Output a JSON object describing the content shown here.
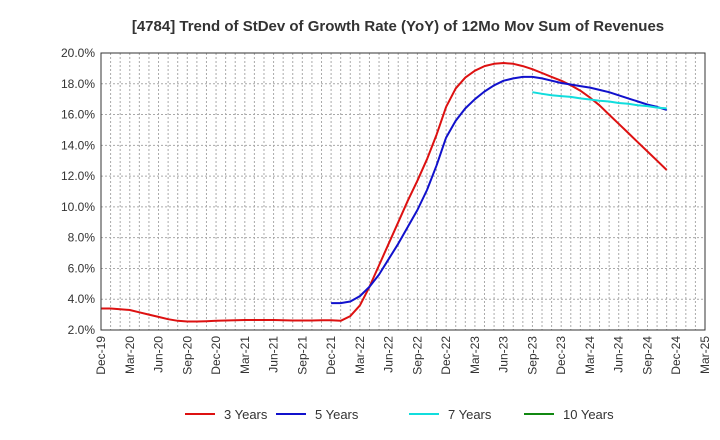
{
  "chart_data": {
    "type": "line",
    "title": "[4784]  Trend of StDev of Growth Rate (YoY) of 12Mo Mov Sum of Revenues",
    "xlabel": "",
    "ylabel": "",
    "x_tick_labels": [
      "Dec-19",
      "Mar-20",
      "Jun-20",
      "Sep-20",
      "Dec-20",
      "Mar-21",
      "Jun-21",
      "Sep-21",
      "Dec-21",
      "Mar-22",
      "Jun-22",
      "Sep-22",
      "Dec-22",
      "Mar-23",
      "Jun-23",
      "Sep-23",
      "Dec-23",
      "Mar-24",
      "Jun-24",
      "Sep-24",
      "Dec-24",
      "Mar-25"
    ],
    "y_tick_labels": [
      "2.0%",
      "4.0%",
      "6.0%",
      "8.0%",
      "10.0%",
      "12.0%",
      "14.0%",
      "16.0%",
      "18.0%",
      "20.0%"
    ],
    "ylim": [
      2.0,
      20.0
    ],
    "grid": true,
    "legend_position": "bottom",
    "series": [
      {
        "name": "3 Years",
        "color": "#dd1111",
        "points": [
          [
            "Dec-19",
            3.4
          ],
          [
            "Jan-20",
            3.4
          ],
          [
            "Feb-20",
            3.35
          ],
          [
            "Mar-20",
            3.3
          ],
          [
            "Apr-20",
            3.15
          ],
          [
            "May-20",
            3.0
          ],
          [
            "Jun-20",
            2.85
          ],
          [
            "Jul-20",
            2.7
          ],
          [
            "Aug-20",
            2.6
          ],
          [
            "Sep-20",
            2.55
          ],
          [
            "Oct-20",
            2.55
          ],
          [
            "Nov-20",
            2.57
          ],
          [
            "Dec-20",
            2.6
          ],
          [
            "Jan-21",
            2.62
          ],
          [
            "Feb-21",
            2.64
          ],
          [
            "Mar-21",
            2.65
          ],
          [
            "Apr-21",
            2.65
          ],
          [
            "May-21",
            2.65
          ],
          [
            "Jun-21",
            2.65
          ],
          [
            "Jul-21",
            2.63
          ],
          [
            "Aug-21",
            2.62
          ],
          [
            "Sep-21",
            2.62
          ],
          [
            "Oct-21",
            2.62
          ],
          [
            "Nov-21",
            2.63
          ],
          [
            "Dec-21",
            2.63
          ],
          [
            "Jan-22",
            2.6
          ],
          [
            "Feb-22",
            2.9
          ],
          [
            "Mar-22",
            3.6
          ],
          [
            "Apr-22",
            4.8
          ],
          [
            "May-22",
            6.2
          ],
          [
            "Jun-22",
            7.6
          ],
          [
            "Jul-22",
            9.0
          ],
          [
            "Aug-22",
            10.4
          ],
          [
            "Sep-22",
            11.7
          ],
          [
            "Oct-22",
            13.1
          ],
          [
            "Nov-22",
            14.7
          ],
          [
            "Dec-22",
            16.5
          ],
          [
            "Jan-23",
            17.7
          ],
          [
            "Feb-23",
            18.4
          ],
          [
            "Mar-23",
            18.85
          ],
          [
            "Apr-23",
            19.15
          ],
          [
            "May-23",
            19.3
          ],
          [
            "Jun-23",
            19.35
          ],
          [
            "Jul-23",
            19.3
          ],
          [
            "Aug-23",
            19.15
          ],
          [
            "Sep-23",
            18.95
          ],
          [
            "Oct-23",
            18.7
          ],
          [
            "Nov-23",
            18.45
          ],
          [
            "Dec-23",
            18.2
          ],
          [
            "Jan-24",
            17.9
          ],
          [
            "Feb-24",
            17.55
          ],
          [
            "Mar-24",
            17.1
          ],
          [
            "Apr-24",
            16.6
          ],
          [
            "May-24",
            16.0
          ],
          [
            "Jun-24",
            15.4
          ],
          [
            "Jul-24",
            14.8
          ],
          [
            "Aug-24",
            14.2
          ],
          [
            "Sep-24",
            13.6
          ],
          [
            "Oct-24",
            13.0
          ],
          [
            "Nov-24",
            12.4
          ]
        ]
      },
      {
        "name": "5 Years",
        "color": "#1111cc",
        "points": [
          [
            "Dec-21",
            3.75
          ],
          [
            "Jan-22",
            3.75
          ],
          [
            "Feb-22",
            3.85
          ],
          [
            "Mar-22",
            4.2
          ],
          [
            "Apr-22",
            4.8
          ],
          [
            "May-22",
            5.6
          ],
          [
            "Jun-22",
            6.6
          ],
          [
            "Jul-22",
            7.6
          ],
          [
            "Aug-22",
            8.7
          ],
          [
            "Sep-22",
            9.8
          ],
          [
            "Oct-22",
            11.1
          ],
          [
            "Nov-22",
            12.7
          ],
          [
            "Dec-22",
            14.5
          ],
          [
            "Jan-23",
            15.6
          ],
          [
            "Feb-23",
            16.4
          ],
          [
            "Mar-23",
            17.0
          ],
          [
            "Apr-23",
            17.5
          ],
          [
            "May-23",
            17.9
          ],
          [
            "Jun-23",
            18.2
          ],
          [
            "Jul-23",
            18.35
          ],
          [
            "Aug-23",
            18.45
          ],
          [
            "Sep-23",
            18.45
          ],
          [
            "Oct-23",
            18.35
          ],
          [
            "Nov-23",
            18.2
          ],
          [
            "Dec-23",
            18.05
          ],
          [
            "Jan-24",
            17.95
          ],
          [
            "Feb-24",
            17.85
          ],
          [
            "Mar-24",
            17.75
          ],
          [
            "Apr-24",
            17.6
          ],
          [
            "May-24",
            17.45
          ],
          [
            "Jun-24",
            17.25
          ],
          [
            "Jul-24",
            17.05
          ],
          [
            "Aug-24",
            16.85
          ],
          [
            "Sep-24",
            16.65
          ],
          [
            "Oct-24",
            16.5
          ],
          [
            "Nov-24",
            16.3
          ]
        ]
      },
      {
        "name": "7 Years",
        "color": "#11dddd",
        "points": [
          [
            "Sep-23",
            17.45
          ],
          [
            "Oct-23",
            17.35
          ],
          [
            "Nov-23",
            17.25
          ],
          [
            "Dec-23",
            17.2
          ],
          [
            "Jan-24",
            17.15
          ],
          [
            "Feb-24",
            17.05
          ],
          [
            "Mar-24",
            16.98
          ],
          [
            "Apr-24",
            16.9
          ],
          [
            "May-24",
            16.85
          ],
          [
            "Jun-24",
            16.75
          ],
          [
            "Jul-24",
            16.7
          ],
          [
            "Aug-24",
            16.6
          ],
          [
            "Sep-24",
            16.55
          ],
          [
            "Oct-24",
            16.45
          ],
          [
            "Nov-24",
            16.4
          ]
        ]
      },
      {
        "name": "10 Years",
        "color": "#118811",
        "points": []
      }
    ]
  }
}
